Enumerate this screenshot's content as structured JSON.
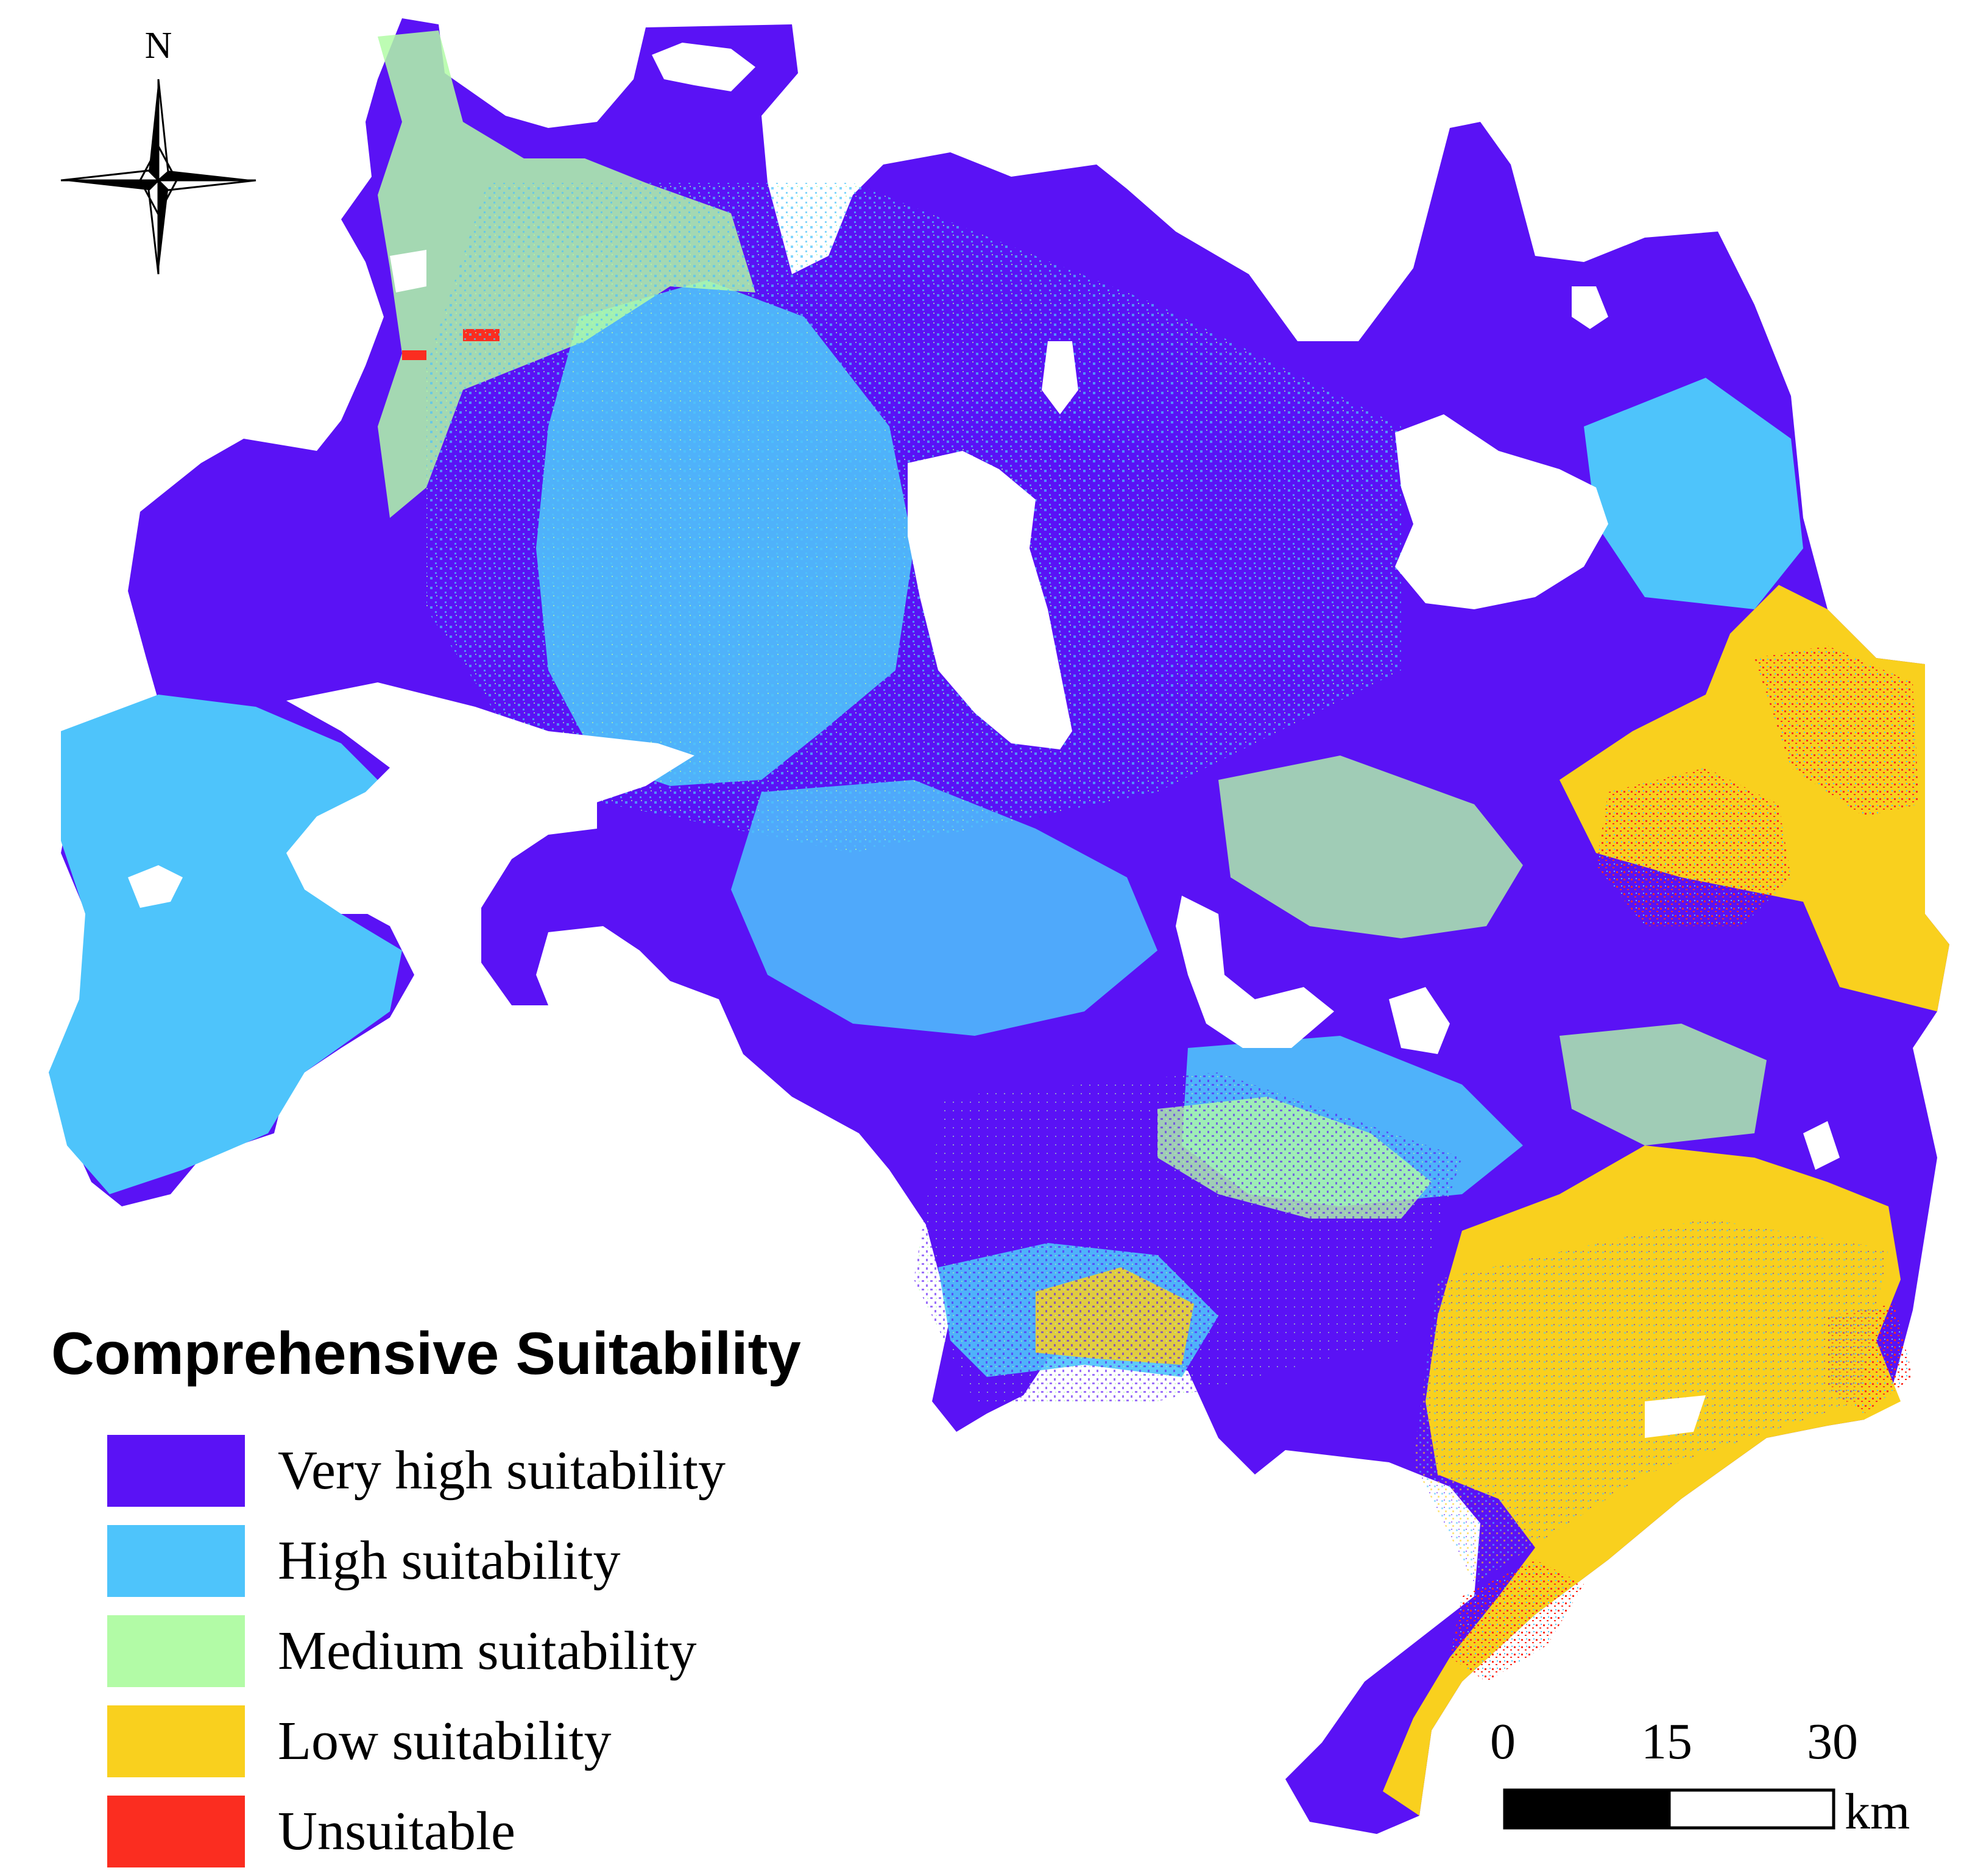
{
  "north_arrow": {
    "label": "N"
  },
  "legend": {
    "title": "Comprehensive Suitability",
    "items": [
      {
        "label": "Very high suitability",
        "color": "#5a12f5"
      },
      {
        "label": "High suitability",
        "color": "#4ec4fb"
      },
      {
        "label": "Medium suitability",
        "color": "#b2fba6"
      },
      {
        "label": "Low suitability",
        "color": "#f9d01e"
      },
      {
        "label": "Unsuitable",
        "color": "#fb2d20"
      }
    ]
  },
  "scale_bar": {
    "ticks": [
      "0",
      "15",
      "30"
    ],
    "unit": "km"
  }
}
